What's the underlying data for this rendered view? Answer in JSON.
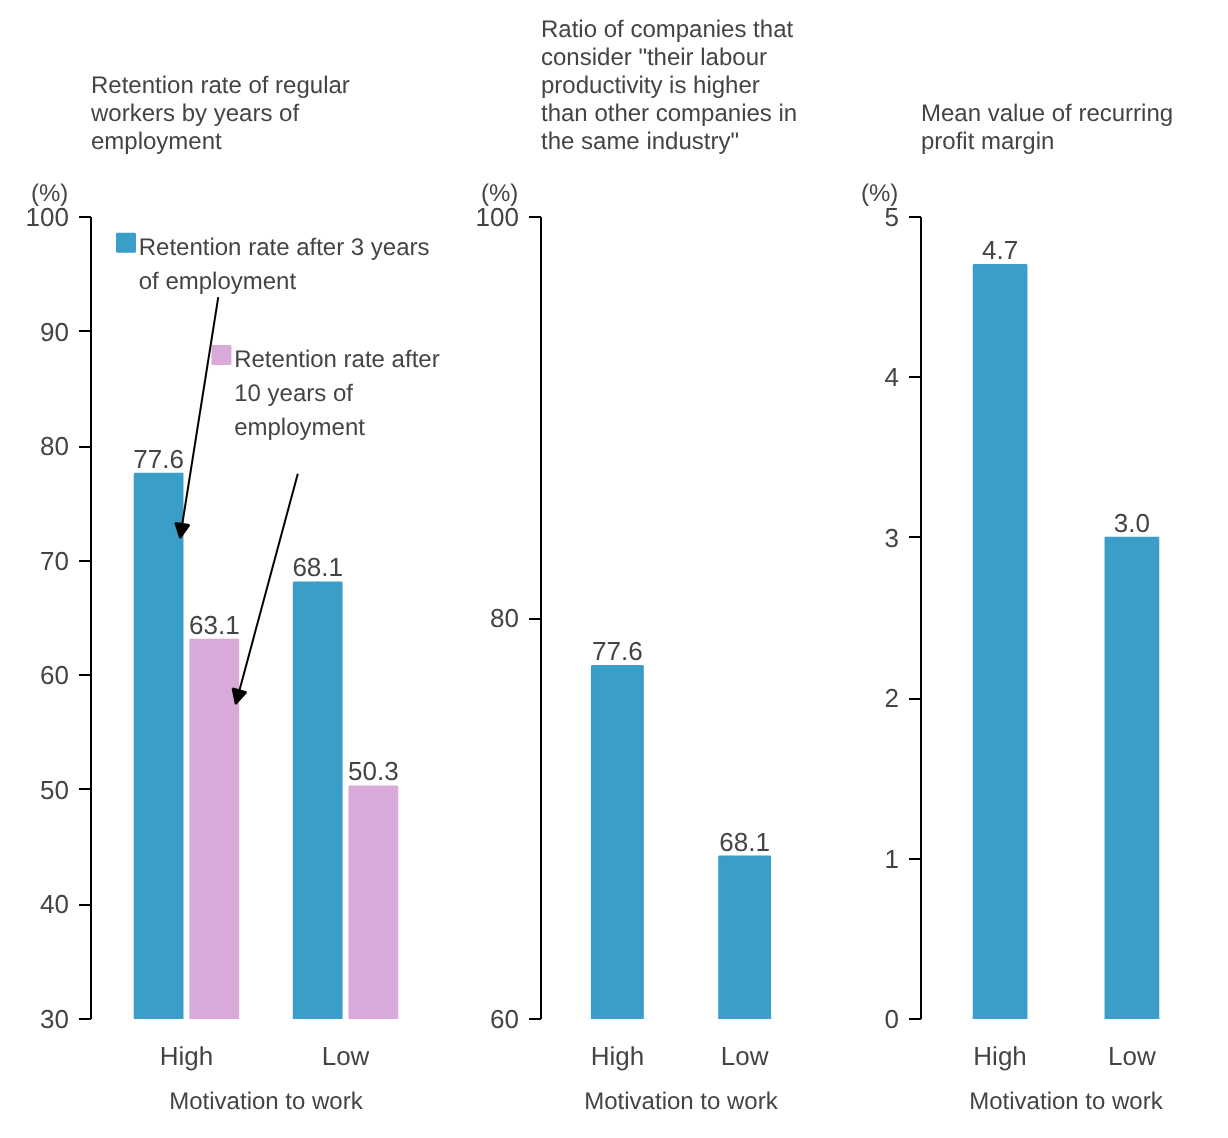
{
  "chart_data": [
    {
      "type": "bar",
      "title": "Retention rate of regular workers by years of employment",
      "ylabel": "(%)",
      "xlabel": "Motivation to work",
      "categories": [
        "High",
        "Low"
      ],
      "series": [
        {
          "name": "Retention rate after 3 years of employment",
          "color": "#3a9ec8",
          "values": [
            77.6,
            68.1
          ]
        },
        {
          "name": "Retention rate after 10 years of employment",
          "color": "#d9a9d9",
          "values": [
            63.1,
            50.3
          ]
        }
      ],
      "ylim": [
        30,
        100
      ],
      "yticks": [
        30,
        40,
        50,
        60,
        70,
        80,
        90,
        100
      ],
      "data_labels": true,
      "legend": "top left"
    },
    {
      "type": "bar",
      "title": "Ratio of companies that consider \"their labour productivity is higher than other companies in the same industry\"",
      "ylabel": "(%)",
      "xlabel": "Motivation to work",
      "categories": [
        "High",
        "Low"
      ],
      "series": [
        {
          "color": "#3a9ec8",
          "values": [
            77.6,
            68.1
          ]
        }
      ],
      "ylim": [
        60,
        100
      ],
      "yticks": [
        60,
        80,
        100
      ],
      "data_labels": true
    },
    {
      "type": "bar",
      "title": "Mean value of recurring profit margin",
      "ylabel": "(%)",
      "xlabel": "Motivation to work",
      "categories": [
        "High",
        "Low"
      ],
      "series": [
        {
          "color": "#3a9ec8",
          "values": [
            4.7,
            3.0
          ],
          "value_labels": [
            "4.7",
            "3.0"
          ]
        }
      ],
      "ylim": [
        0,
        5
      ],
      "yticks": [
        0,
        1,
        2,
        3,
        4,
        5
      ]
    }
  ]
}
